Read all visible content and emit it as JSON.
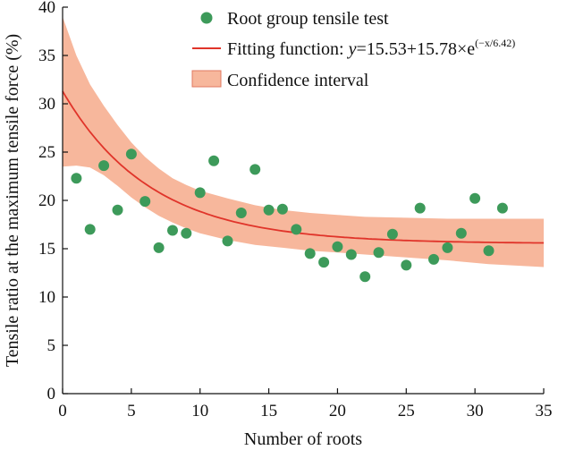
{
  "chart_data": {
    "type": "scatter",
    "xlabel": "Number of roots",
    "ylabel": "Tensile ratio at the maximum tensile force (%)",
    "xlim": [
      0,
      35
    ],
    "ylim": [
      0,
      40
    ],
    "xticks": [
      0,
      5,
      10,
      15,
      20,
      25,
      30,
      35
    ],
    "yticks": [
      0,
      5,
      10,
      15,
      20,
      25,
      30,
      35,
      40
    ],
    "grid": false,
    "legend_position": "top-right",
    "colors": {
      "points": "#3d9a5a",
      "fit_line": "#e0342a",
      "band": "#f7b79c"
    },
    "series": [
      {
        "name": "Root group tensile test",
        "type": "scatter",
        "x": [
          1,
          2,
          3,
          4,
          5,
          6,
          7,
          8,
          9,
          10,
          11,
          12,
          13,
          14,
          15,
          16,
          17,
          18,
          19,
          20,
          21,
          22,
          23,
          24,
          25,
          26,
          27,
          28,
          29,
          30,
          31,
          32
        ],
        "y": [
          22.3,
          17.0,
          23.6,
          19.0,
          24.8,
          19.9,
          15.1,
          16.9,
          16.6,
          20.8,
          24.1,
          15.8,
          18.7,
          23.2,
          19.0,
          19.1,
          17.0,
          14.5,
          13.6,
          15.2,
          14.4,
          12.1,
          14.6,
          16.5,
          13.3,
          19.2,
          13.9,
          15.1,
          16.6,
          20.2,
          14.8,
          19.2
        ]
      },
      {
        "name": "Fitting function",
        "type": "line",
        "formula": {
          "a": 15.53,
          "b": 15.78,
          "c": 6.42
        }
      },
      {
        "name": "Confidence interval",
        "type": "area",
        "x": [
          0,
          1,
          2,
          3,
          4,
          5,
          6,
          7,
          8,
          9,
          10,
          12,
          14,
          16,
          18,
          20,
          22,
          25,
          28,
          31,
          35
        ],
        "upper": [
          39.0,
          35.0,
          32.0,
          29.8,
          27.8,
          26.0,
          24.5,
          23.3,
          22.3,
          21.6,
          21.0,
          20.2,
          19.5,
          19.0,
          18.7,
          18.5,
          18.3,
          18.2,
          18.1,
          18.1,
          18.1
        ],
        "lower": [
          23.5,
          23.6,
          23.4,
          22.6,
          21.5,
          20.3,
          19.3,
          18.4,
          17.7,
          17.1,
          16.6,
          15.9,
          15.4,
          15.1,
          14.8,
          14.6,
          14.4,
          14.1,
          13.8,
          13.4,
          13.1
        ]
      }
    ],
    "legend": [
      {
        "key": "points",
        "label": "Root group tensile test"
      },
      {
        "key": "fit",
        "label_prefix": "Fitting function: ",
        "label_var": "y",
        "label_main": "=15.53+15.78×e",
        "label_sup": "(−x/6.42)"
      },
      {
        "key": "band",
        "label": "Confidence interval"
      }
    ]
  }
}
